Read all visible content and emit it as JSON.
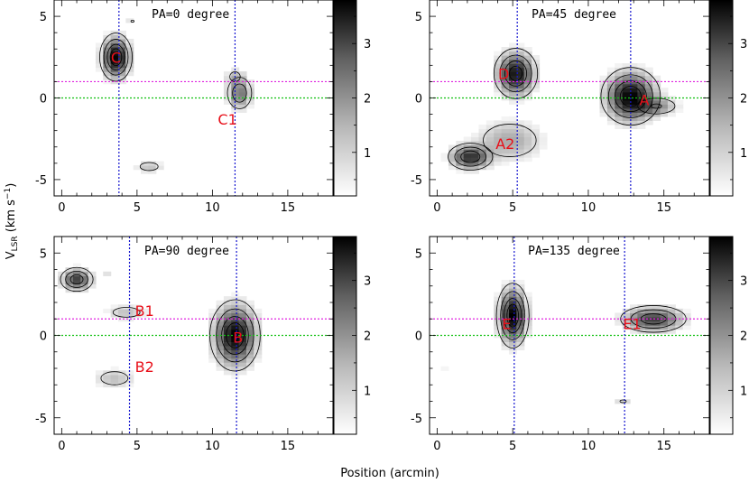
{
  "chart_data": {
    "type": "heatmap",
    "layout": "2x2",
    "xlabel": "Position (arcmin)",
    "ylabel_main": "V",
    "ylabel_sub": "LSR",
    "ylabel_unit_a": " (km s",
    "ylabel_unit_exp": "−1",
    "ylabel_unit_b": ")",
    "xlim": [
      -0.5,
      18
    ],
    "ylim": [
      -6,
      6
    ],
    "xticks": [
      0,
      5,
      10,
      15
    ],
    "yticks": [
      -5,
      0,
      5
    ],
    "colorbar_ticks": [
      1,
      2,
      3
    ],
    "colorbar_range": [
      0.2,
      3.8
    ],
    "colors": {
      "vline": "#1515d0",
      "hline_magenta": "#e020e0",
      "hline_green": "#10c010",
      "label": "#e8101a"
    },
    "panels": [
      {
        "title": "PA=0 degree",
        "xmax": 17,
        "vlines": [
          3.8,
          11.5
        ],
        "hlines": [
          {
            "y": 1.0,
            "color": "magenta"
          },
          {
            "y": 0.0,
            "color": "green"
          }
        ],
        "labels": [
          {
            "text": "C",
            "x": 3.6,
            "y": 2.5
          },
          {
            "text": "C1",
            "x": 11.0,
            "y": -1.3
          }
        ],
        "clumps": [
          {
            "x": 3.6,
            "y": 2.5,
            "sx": 0.55,
            "sy": 0.75,
            "peak": 3.8
          },
          {
            "x": 11.8,
            "y": 0.3,
            "sx": 0.5,
            "sy": 0.6,
            "peak": 2.0
          },
          {
            "x": 11.5,
            "y": 1.3,
            "sx": 0.4,
            "sy": 0.35,
            "peak": 0.8
          },
          {
            "x": 5.8,
            "y": -4.2,
            "sx": 0.6,
            "sy": 0.25,
            "peak": 0.9
          },
          {
            "x": 4.7,
            "y": 4.7,
            "sx": 0.25,
            "sy": 0.15,
            "peak": 0.6
          }
        ]
      },
      {
        "title": "PA=45 degree",
        "xmax": 18,
        "vlines": [
          5.3,
          12.8
        ],
        "hlines": [
          {
            "y": 1.0,
            "color": "magenta"
          },
          {
            "y": 0.0,
            "color": "green"
          }
        ],
        "labels": [
          {
            "text": "D",
            "x": 4.4,
            "y": 1.5
          },
          {
            "text": "A",
            "x": 13.7,
            "y": -0.1
          },
          {
            "text": "A2",
            "x": 4.5,
            "y": -2.8
          }
        ],
        "clumps": [
          {
            "x": 12.8,
            "y": 0.1,
            "sx": 1.0,
            "sy": 0.9,
            "peak": 3.8
          },
          {
            "x": 5.2,
            "y": 1.5,
            "sx": 0.75,
            "sy": 0.8,
            "peak": 3.5
          },
          {
            "x": 2.2,
            "y": -3.6,
            "sx": 0.8,
            "sy": 0.45,
            "peak": 3.0
          },
          {
            "x": 4.8,
            "y": -2.6,
            "sx": 1.4,
            "sy": 0.8,
            "peak": 1.2
          },
          {
            "x": 14.5,
            "y": -0.5,
            "sx": 0.9,
            "sy": 0.35,
            "peak": 1.4
          }
        ]
      },
      {
        "title": "PA=90 degree",
        "xmax": 16.5,
        "vlines": [
          4.5,
          11.6
        ],
        "hlines": [
          {
            "y": 1.0,
            "color": "magenta"
          },
          {
            "y": 0.0,
            "color": "green"
          }
        ],
        "labels": [
          {
            "text": "B1",
            "x": 5.5,
            "y": 1.5
          },
          {
            "text": "B",
            "x": 11.7,
            "y": -0.1
          },
          {
            "text": "B2",
            "x": 5.5,
            "y": -1.9
          }
        ],
        "clumps": [
          {
            "x": 11.5,
            "y": 0.0,
            "sx": 0.85,
            "sy": 1.1,
            "peak": 3.8
          },
          {
            "x": 1.0,
            "y": 3.4,
            "sx": 0.6,
            "sy": 0.4,
            "peak": 2.8
          },
          {
            "x": 4.3,
            "y": 1.4,
            "sx": 0.9,
            "sy": 0.3,
            "peak": 0.9
          },
          {
            "x": 3.5,
            "y": -2.6,
            "sx": 0.9,
            "sy": 0.4,
            "peak": 0.9
          },
          {
            "x": 3.0,
            "y": 3.8,
            "sx": 0.3,
            "sy": 0.15,
            "peak": 0.5
          }
        ]
      },
      {
        "title": "PA=135 degree",
        "xmax": 18,
        "vlines": [
          5.1,
          12.4
        ],
        "hlines": [
          {
            "y": 1.0,
            "color": "magenta"
          },
          {
            "y": 0.0,
            "color": "green"
          }
        ],
        "labels": [
          {
            "text": "E",
            "x": 4.6,
            "y": 0.7
          },
          {
            "text": "E1",
            "x": 12.9,
            "y": 0.7
          }
        ],
        "clumps": [
          {
            "x": 5.0,
            "y": 1.2,
            "sx": 0.55,
            "sy": 1.0,
            "peak": 3.8
          },
          {
            "x": 14.3,
            "y": 1.0,
            "sx": 1.2,
            "sy": 0.45,
            "peak": 2.8
          },
          {
            "x": 12.3,
            "y": -4.0,
            "sx": 0.5,
            "sy": 0.2,
            "peak": 0.6
          },
          {
            "x": 0.5,
            "y": -2.1,
            "sx": 0.2,
            "sy": 0.12,
            "peak": 0.4
          }
        ]
      }
    ]
  }
}
